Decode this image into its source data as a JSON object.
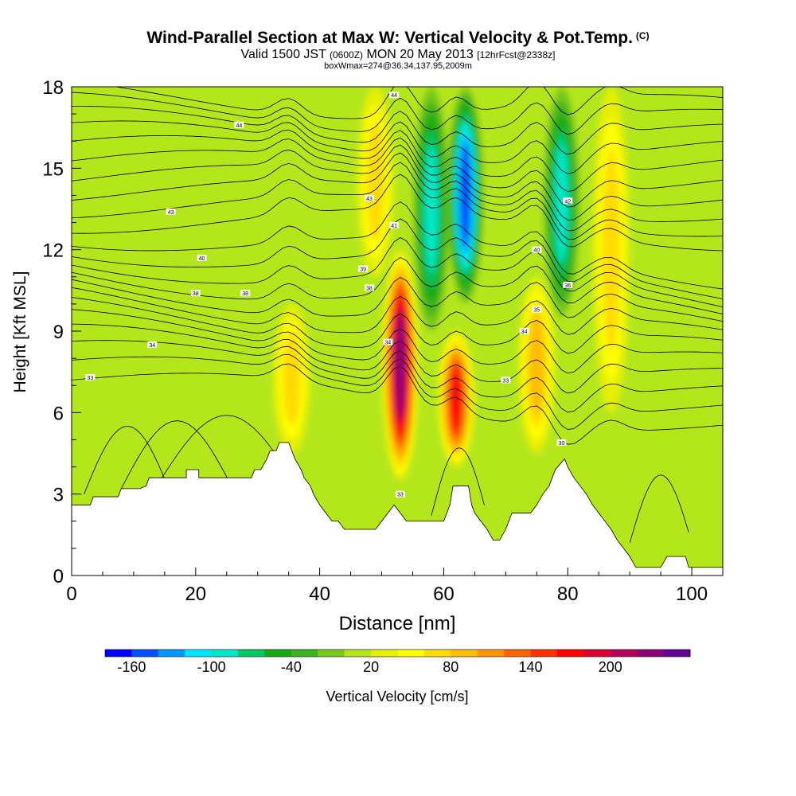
{
  "title": {
    "main": "Wind-Parallel Section at Max W: Vertical Velocity & Pot.Temp.",
    "copyright": "(C)",
    "valid_prefix": "Valid 1500 JST",
    "valid_utc": "(0600Z)",
    "valid_date": "MON 20 May 2013",
    "forecast": "[12hrFcst@2338z]",
    "box_info": "boxWmax=274@36.34,137.95,2009m"
  },
  "chart_data": {
    "type": "heatmap",
    "xlabel": "Distance [nm]",
    "ylabel": "Height [Kft MSL]",
    "xlim": [
      0,
      105
    ],
    "ylim": [
      0,
      18
    ],
    "x_ticks": [
      "0",
      "20",
      "40",
      "60",
      "80",
      "100"
    ],
    "y_ticks": [
      "0",
      "3",
      "6",
      "9",
      "12",
      "15",
      "18"
    ],
    "colorbar": {
      "label": "Vertical Velocity [cm/s]",
      "tick_labels": [
        "-160",
        "-100",
        "-40",
        "20",
        "80",
        "140",
        "200"
      ],
      "tick_values": [
        -160,
        -100,
        -40,
        20,
        80,
        140,
        200
      ],
      "range": [
        -180,
        260
      ],
      "colors": [
        "#0000ff",
        "#0050ff",
        "#0096ff",
        "#00e6ff",
        "#00e6c8",
        "#00c864",
        "#14aa14",
        "#3cb41e",
        "#78c81e",
        "#b4e61e",
        "#e6f000",
        "#ffff00",
        "#ffdc00",
        "#ffbe00",
        "#ff9600",
        "#ff6400",
        "#ff3200",
        "#ff0000",
        "#dc0032",
        "#b4005a",
        "#8c0078",
        "#640096"
      ]
    },
    "updrafts": [
      {
        "x": 53,
        "base": 3.5,
        "top": 12,
        "peak": 220
      },
      {
        "x": 62,
        "base": 4,
        "top": 9,
        "peak": 160
      },
      {
        "x": 35.5,
        "base": 4.5,
        "top": 10,
        "peak": 60
      },
      {
        "x": 75,
        "base": 4.5,
        "top": 11,
        "peak": 90
      },
      {
        "x": 87,
        "base": 6,
        "top": 18,
        "peak": 70
      },
      {
        "x": 49,
        "base": 11,
        "top": 18,
        "peak": 60
      }
    ],
    "downdrafts": [
      {
        "x": 63.5,
        "base": 10,
        "top": 18,
        "peak": -160
      },
      {
        "x": 58,
        "base": 9,
        "top": 18,
        "peak": -100
      },
      {
        "x": 79,
        "base": 9.5,
        "top": 18,
        "peak": -100
      }
    ],
    "terrain_profile": [
      [
        0,
        2.6
      ],
      [
        3,
        2.6
      ],
      [
        3.5,
        2.9
      ],
      [
        7.5,
        2.9
      ],
      [
        8,
        3.2
      ],
      [
        11,
        3.2
      ],
      [
        12,
        3.3
      ],
      [
        12.5,
        3.6
      ],
      [
        18.5,
        3.6
      ],
      [
        18.5,
        3.9
      ],
      [
        20.5,
        3.9
      ],
      [
        20.5,
        3.6
      ],
      [
        29,
        3.6
      ],
      [
        29.5,
        3.9
      ],
      [
        30.5,
        3.9
      ],
      [
        31.5,
        4.3
      ],
      [
        32,
        4.6
      ],
      [
        33,
        4.6
      ],
      [
        33.5,
        4.9
      ],
      [
        35,
        4.9
      ],
      [
        35.5,
        4.6
      ],
      [
        36,
        4.3
      ],
      [
        37,
        3.9
      ],
      [
        37.5,
        3.6
      ],
      [
        38.5,
        3.3
      ],
      [
        39,
        3.0
      ],
      [
        40,
        2.6
      ],
      [
        41,
        2.3
      ],
      [
        42,
        2.0
      ],
      [
        43,
        2.0
      ],
      [
        44,
        1.7
      ],
      [
        49,
        1.7
      ],
      [
        50,
        2.0
      ],
      [
        51,
        2.3
      ],
      [
        52,
        2.6
      ],
      [
        53,
        2.3
      ],
      [
        54,
        2.0
      ],
      [
        60,
        2.0
      ],
      [
        60.5,
        2.3
      ],
      [
        61,
        2.6
      ],
      [
        61.5,
        3.3
      ],
      [
        64,
        3.3
      ],
      [
        64.5,
        2.6
      ],
      [
        65,
        2.3
      ],
      [
        66,
        2.0
      ],
      [
        67,
        1.7
      ],
      [
        68,
        1.3
      ],
      [
        69,
        1.3
      ],
      [
        70,
        1.7
      ],
      [
        71,
        2.3
      ],
      [
        74,
        2.3
      ],
      [
        75,
        2.6
      ],
      [
        76,
        3.0
      ],
      [
        77,
        3.3
      ],
      [
        77.5,
        3.6
      ],
      [
        78,
        3.9
      ],
      [
        79.5,
        4.3
      ],
      [
        80,
        4.0
      ],
      [
        81,
        3.6
      ],
      [
        82,
        3.3
      ],
      [
        83,
        3.0
      ],
      [
        84,
        2.6
      ],
      [
        85,
        2.3
      ],
      [
        86,
        2.0
      ],
      [
        87,
        1.7
      ],
      [
        88,
        1.3
      ],
      [
        89,
        1.0
      ],
      [
        90,
        0.7
      ],
      [
        91,
        0.3
      ],
      [
        95,
        0.3
      ],
      [
        96,
        0.7
      ],
      [
        99,
        0.7
      ],
      [
        99.5,
        0.3
      ],
      [
        105,
        0.3
      ]
    ],
    "isentropes": {
      "label": "Pot.Temp.",
      "labels": [
        {
          "text": "44",
          "x": 52,
          "y": 17.7
        },
        {
          "text": "44",
          "x": 27,
          "y": 16.6
        },
        {
          "text": "43",
          "x": 16,
          "y": 13.4
        },
        {
          "text": "43",
          "x": 48,
          "y": 13.9
        },
        {
          "text": "42",
          "x": 80,
          "y": 13.8
        },
        {
          "text": "41",
          "x": 52,
          "y": 12.9
        },
        {
          "text": "40",
          "x": 21,
          "y": 11.7
        },
        {
          "text": "40",
          "x": 75,
          "y": 12.0
        },
        {
          "text": "39",
          "x": 47,
          "y": 11.3
        },
        {
          "text": "38",
          "x": 20,
          "y": 10.4
        },
        {
          "text": "38",
          "x": 28,
          "y": 10.4
        },
        {
          "text": "38",
          "x": 48,
          "y": 10.6
        },
        {
          "text": "36",
          "x": 80,
          "y": 10.7
        },
        {
          "text": "35",
          "x": 75,
          "y": 9.8
        },
        {
          "text": "34",
          "x": 13,
          "y": 8.5
        },
        {
          "text": "34",
          "x": 51,
          "y": 8.6
        },
        {
          "text": "34",
          "x": 73,
          "y": 9.0
        },
        {
          "text": "33",
          "x": 3,
          "y": 7.3
        },
        {
          "text": "33",
          "x": 70,
          "y": 7.2
        },
        {
          "text": "33",
          "x": 53,
          "y": 3.0
        },
        {
          "text": "30",
          "x": 79,
          "y": 4.9
        }
      ]
    }
  }
}
